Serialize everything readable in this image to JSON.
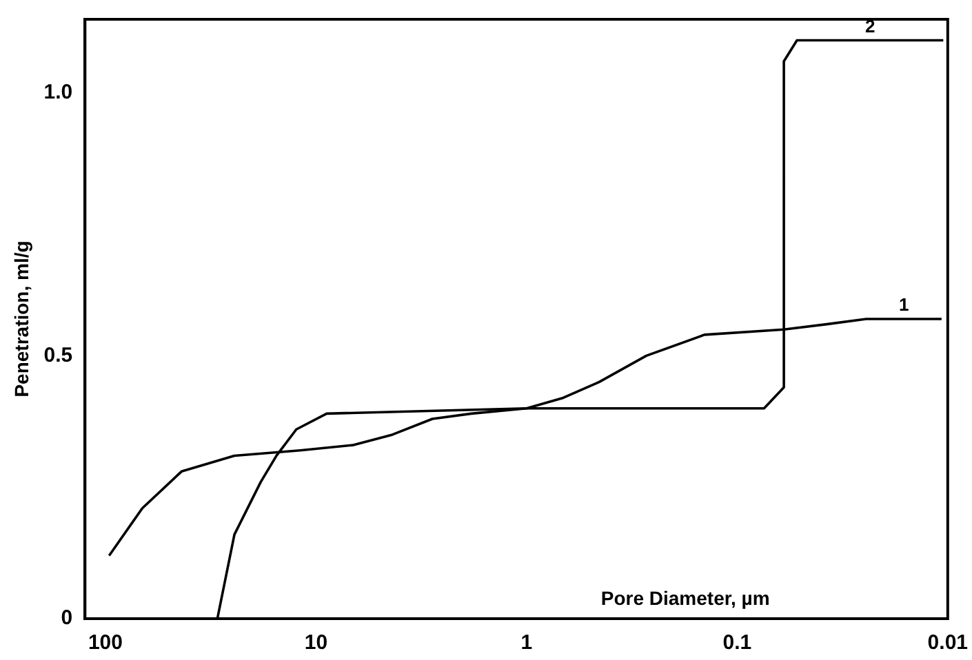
{
  "chart_data": {
    "type": "line",
    "xlabel": "Pore Diameter, µm",
    "ylabel": "Penetration, ml/g",
    "log": "x",
    "xlim": [
      125,
      0.01
    ],
    "xticks": [
      100,
      10,
      1,
      0.1,
      0.01
    ],
    "ylim": [
      0,
      1.14
    ],
    "yticks": [
      0,
      {
        "value": 0.5,
        "label": "0.5"
      },
      {
        "value": 1,
        "label": "1.0"
      }
    ],
    "grid": false,
    "legend": false,
    "marker": "none",
    "line_style": "solid",
    "series": [
      {
        "name": "1",
        "color": "#000000",
        "x": [
          96,
          66.8,
          43.5,
          24.4,
          11.9,
          6.7,
          4.34,
          2.8,
          1.83,
          1,
          0.67,
          0.453,
          0.27,
          0.143,
          0.06,
          0.0376,
          0.0244,
          0.0107
        ],
        "values": [
          0.12,
          0.21,
          0.28,
          0.31,
          0.32,
          0.33,
          0.35,
          0.38,
          0.39,
          0.4,
          0.42,
          0.45,
          0.5,
          0.54,
          0.55,
          0.56,
          0.57,
          0.57
        ]
      },
      {
        "name": "2",
        "color": "#000000",
        "x": [
          29.4,
          24.4,
          18.3,
          15.4,
          12.4,
          8.9,
          1,
          0.0745,
          0.06,
          0.06,
          0.052,
          0.0105
        ],
        "values": [
          0,
          0.16,
          0.26,
          0.31,
          0.36,
          0.39,
          0.4,
          0.4,
          0.44,
          1.06,
          1.1,
          1.1
        ]
      }
    ]
  }
}
